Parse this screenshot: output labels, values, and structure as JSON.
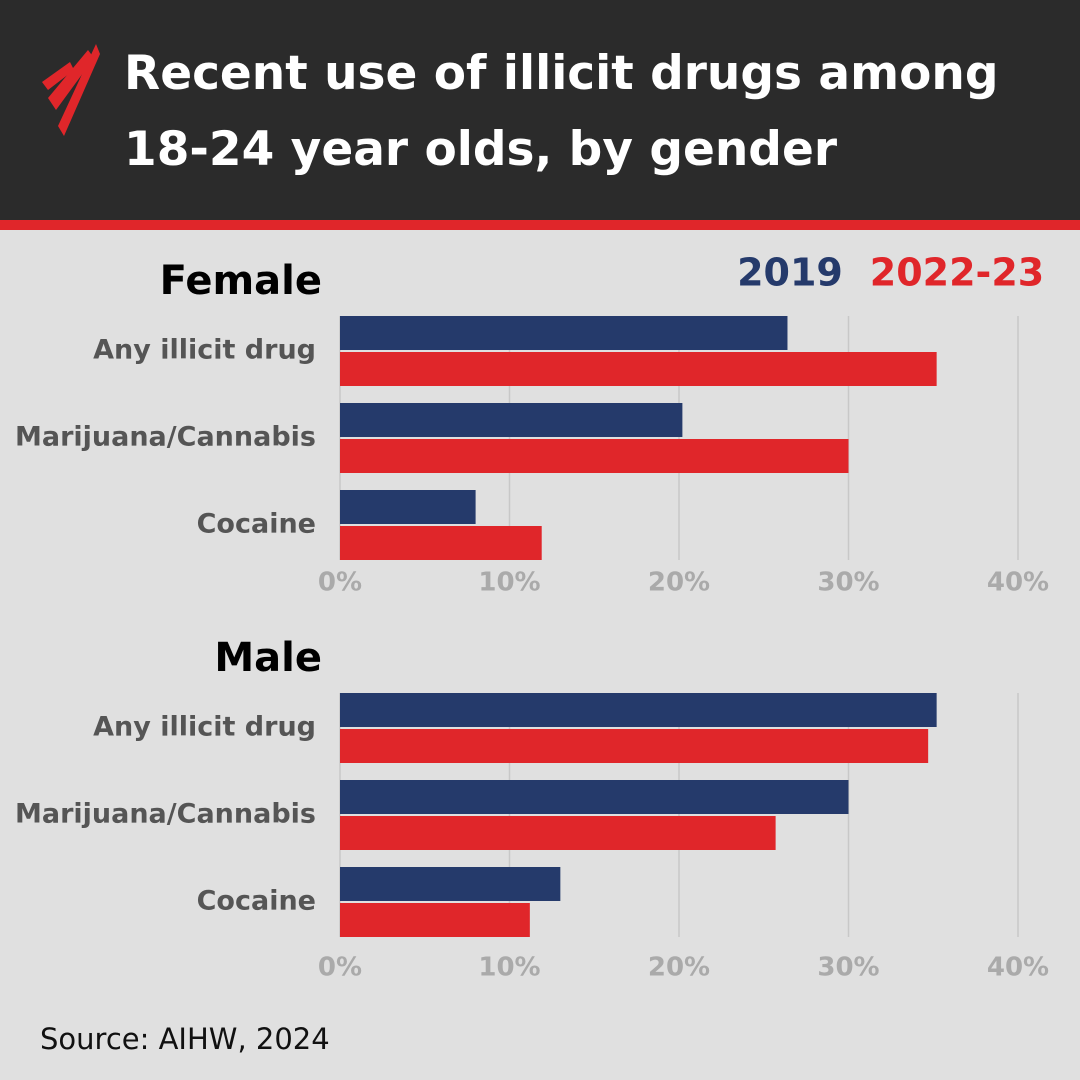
{
  "header": {
    "title": "Recent use of illicit drugs among 18-24 year olds, by gender"
  },
  "source": "Source: AIHW, 2024",
  "chart_data": [
    {
      "type": "bar",
      "orientation": "horizontal",
      "title": "Female",
      "categories": [
        "Any illicit drug",
        "Marijuana/Cannabis",
        "Cocaine"
      ],
      "series": [
        {
          "name": "2019",
          "color": "#253a6b",
          "values": [
            26.4,
            20.2,
            8.0
          ]
        },
        {
          "name": "2022-23",
          "color": "#e0262a",
          "values": [
            35.2,
            30.0,
            11.9
          ]
        }
      ],
      "xlim": [
        0,
        40
      ],
      "xticks": [
        {
          "value": 0,
          "label": "0%"
        },
        {
          "value": 10,
          "label": "10%"
        },
        {
          "value": 20,
          "label": "20%"
        },
        {
          "value": 30,
          "label": "30%"
        },
        {
          "value": 40,
          "label": "40%"
        }
      ],
      "grid": true
    },
    {
      "type": "bar",
      "orientation": "horizontal",
      "title": "Male",
      "categories": [
        "Any illicit drug",
        "Marijuana/Cannabis",
        "Cocaine"
      ],
      "series": [
        {
          "color": "#253a6b",
          "values": [
            35.2,
            30.0,
            13.0
          ]
        },
        {
          "color": "#e0262a",
          "values": [
            34.7,
            25.7,
            11.2
          ]
        }
      ],
      "xlim": [
        0,
        40
      ],
      "xticks": [
        {
          "value": 0,
          "label": "0%"
        },
        {
          "value": 10,
          "label": "10%"
        },
        {
          "value": 20,
          "label": "20%"
        },
        {
          "value": 30,
          "label": "30%"
        },
        {
          "value": 40,
          "label": "40%"
        }
      ],
      "grid": true
    }
  ]
}
